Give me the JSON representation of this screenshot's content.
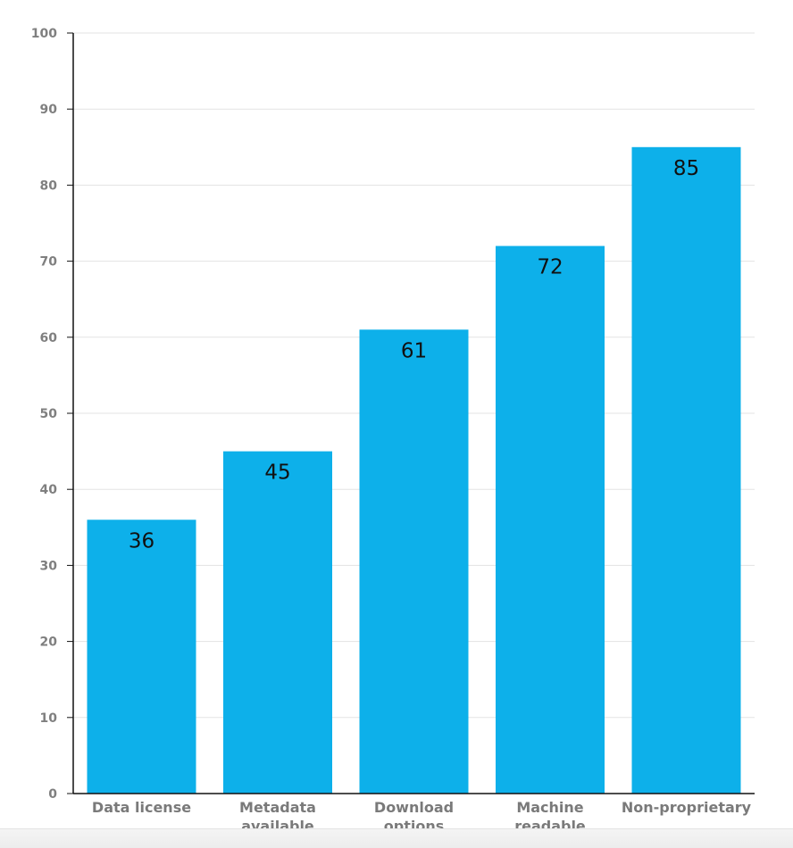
{
  "chart_data": {
    "type": "bar",
    "categories": [
      "Data license",
      [
        "Metadata",
        "available"
      ],
      [
        "Download",
        "options"
      ],
      [
        "Machine",
        "readable"
      ],
      "Non-proprietary"
    ],
    "values": [
      36,
      45,
      61,
      72,
      85
    ],
    "value_labels": [
      "36",
      "45",
      "61",
      "72",
      "85"
    ],
    "title": "",
    "xlabel": "",
    "ylabel": "",
    "ylim": [
      0,
      100
    ],
    "yticks": [
      0,
      10,
      20,
      30,
      40,
      50,
      60,
      70,
      80,
      90,
      100
    ],
    "grid": true,
    "legend": "none",
    "colors": {
      "bar": "#0db0ea",
      "grid": "#e3e3e3",
      "axis": "#111111",
      "tick_text": "#7f7f7f",
      "value_text": "#111111"
    }
  }
}
